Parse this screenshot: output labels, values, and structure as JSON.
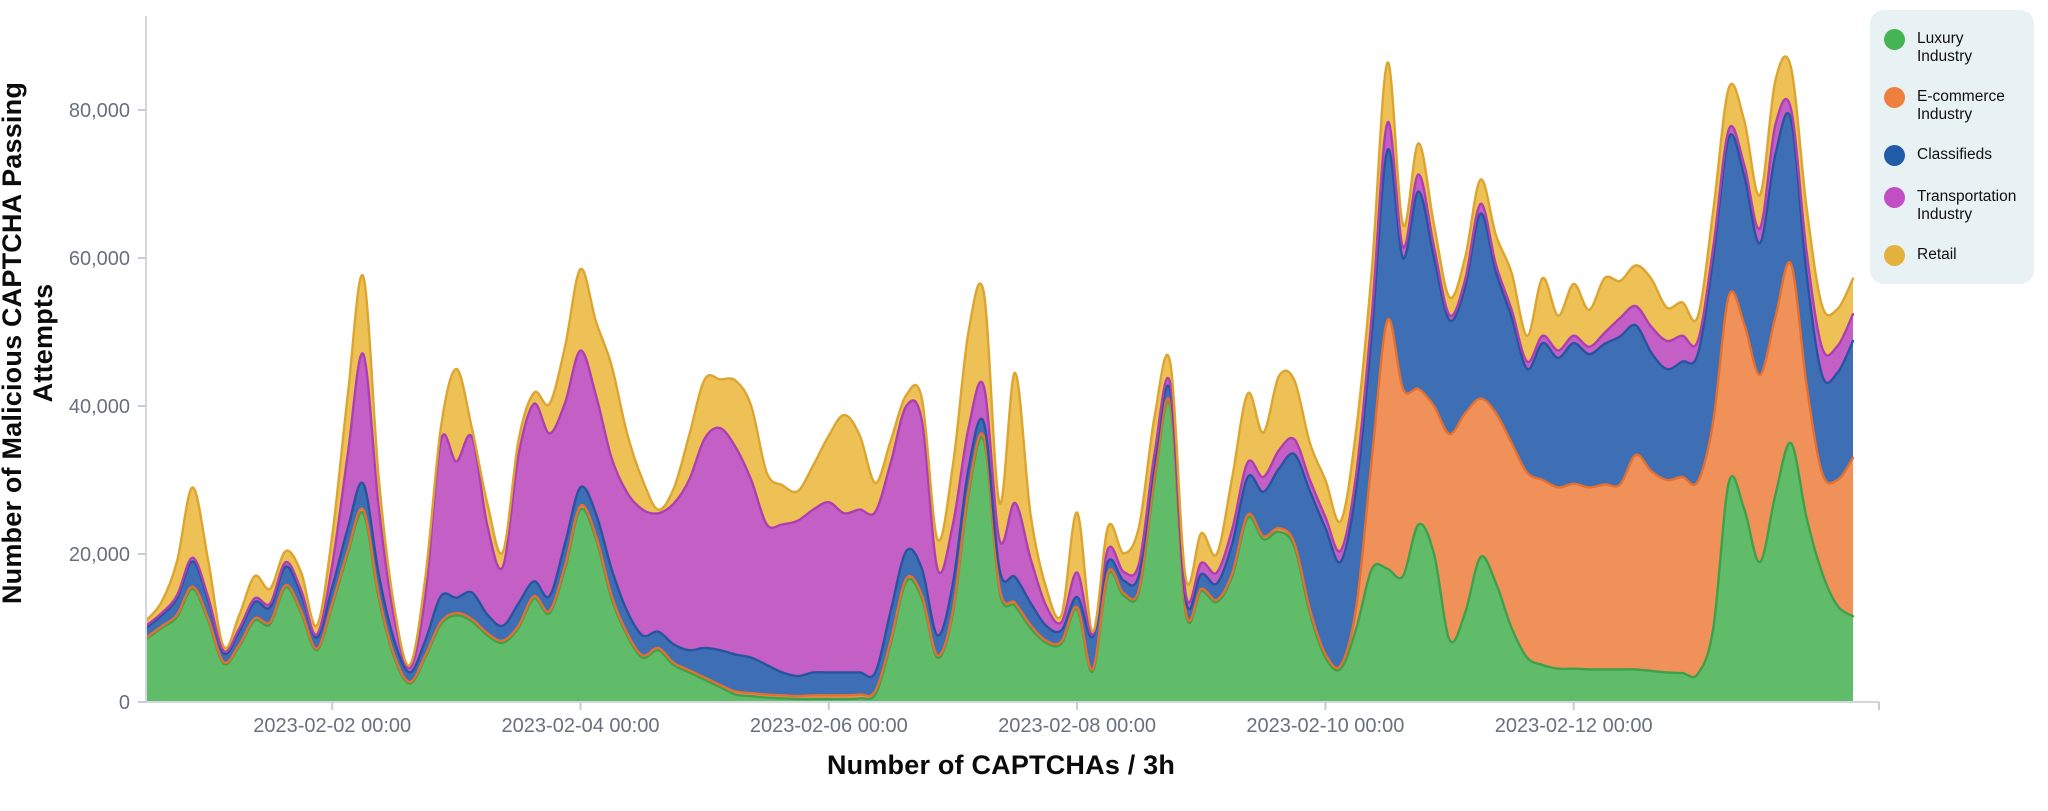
{
  "y_axis": {
    "title": "Number of Malicious CAPTCHA Passing Attempts",
    "tick_labels": [
      "0",
      "20,000",
      "40,000",
      "60,000",
      "80,000"
    ],
    "tick_values": [
      0,
      20000,
      40000,
      60000,
      80000
    ]
  },
  "x_axis": {
    "title": "Number of CAPTCHAs / 3h",
    "tick_labels": [
      "2023-02-02 00:00",
      "2023-02-04 00:00",
      "2023-02-06 00:00",
      "2023-02-08 00:00",
      "2023-02-10 00:00",
      "2023-02-12 00:00"
    ],
    "tick_indices": [
      12,
      28,
      44,
      60,
      76,
      92
    ]
  },
  "legend": {
    "items": [
      {
        "label": "Luxury Industry",
        "color": "#45b554"
      },
      {
        "label": "E-commerce Industry",
        "color": "#ef7f3d"
      },
      {
        "label": "Classifieds",
        "color": "#1f5ba6"
      },
      {
        "label": "Transportation Industry",
        "color": "#c14fc3"
      },
      {
        "label": "Retail",
        "color": "#e3b13d"
      }
    ]
  },
  "chart_data": {
    "type": "area",
    "stacked": true,
    "smooth": true,
    "title": "",
    "xlabel": "Number of CAPTCHAs / 3h",
    "ylabel": "Number of Malicious CAPTCHA Passing Attempts",
    "x_start": "2023-01-31 12:00",
    "x_end": "2023-02-14 06:00",
    "x_step_hours": 3,
    "ylim": [
      0,
      92000
    ],
    "grid": false,
    "legend_position": "top-right",
    "series": [
      {
        "name": "Luxury Industry",
        "fill": "#61bc6a",
        "stroke": "#3da14b",
        "values": [
          8500,
          10000,
          11500,
          15300,
          11000,
          5200,
          7500,
          11000,
          10500,
          15500,
          12000,
          7000,
          13000,
          20000,
          25500,
          14000,
          6000,
          2500,
          6000,
          10500,
          11700,
          10900,
          9000,
          8000,
          10000,
          14000,
          12000,
          18000,
          26000,
          22000,
          14000,
          9000,
          6000,
          7000,
          5000,
          4000,
          3000,
          2000,
          1000,
          800,
          600,
          500,
          400,
          400,
          400,
          400,
          500,
          1000,
          8000,
          16300,
          14000,
          6000,
          12000,
          28000,
          35300,
          15000,
          13000,
          10000,
          8000,
          7900,
          12500,
          4100,
          17200,
          14400,
          15000,
          30000,
          40000,
          12000,
          15000,
          13500,
          17000,
          24900,
          22000,
          23000,
          21000,
          12000,
          6000,
          4500,
          10000,
          18000,
          18000,
          17000,
          24000,
          20000,
          8400,
          12000,
          19600,
          16000,
          10000,
          6000,
          5000,
          4500,
          4500,
          4400,
          4400,
          4400,
          4400,
          4200,
          4000,
          3900,
          3800,
          10000,
          29700,
          26000,
          18900,
          28000,
          35000,
          25000,
          17500,
          13000,
          11600
        ]
      },
      {
        "name": "E-commerce Industry",
        "fill": "#f0915a",
        "stroke": "#e46f2e",
        "values": [
          200,
          200,
          300,
          300,
          300,
          200,
          200,
          300,
          300,
          300,
          300,
          200,
          300,
          400,
          500,
          400,
          300,
          200,
          300,
          300,
          300,
          300,
          300,
          300,
          300,
          300,
          300,
          400,
          500,
          400,
          400,
          300,
          300,
          300,
          300,
          300,
          300,
          300,
          400,
          400,
          400,
          400,
          400,
          500,
          500,
          500,
          500,
          500,
          400,
          400,
          400,
          300,
          400,
          500,
          500,
          400,
          400,
          400,
          300,
          300,
          300,
          300,
          300,
          300,
          300,
          400,
          400,
          300,
          300,
          300,
          400,
          400,
          400,
          500,
          500,
          500,
          500,
          500,
          3000,
          15000,
          33600,
          25300,
          18300,
          20000,
          27800,
          27000,
          21400,
          23000,
          25000,
          25000,
          25000,
          24500,
          25000,
          24600,
          25000,
          25000,
          29000,
          27000,
          26000,
          26500,
          26000,
          28000,
          25200,
          25000,
          25300,
          24000,
          24200,
          18000,
          13500,
          17000,
          21400
        ]
      },
      {
        "name": "Classifieds",
        "fill": "#3e6fb5",
        "stroke": "#27549e",
        "values": [
          1300,
          1500,
          2200,
          3400,
          2500,
          1200,
          1800,
          2200,
          2000,
          2500,
          2200,
          1500,
          2200,
          3000,
          3500,
          2800,
          2000,
          1300,
          2000,
          3500,
          2100,
          3600,
          2500,
          2000,
          3000,
          2000,
          2000,
          3000,
          2500,
          3000,
          3600,
          3000,
          2700,
          2200,
          2500,
          2700,
          4000,
          4700,
          5000,
          4800,
          4000,
          3100,
          2700,
          3100,
          3100,
          3100,
          3000,
          2500,
          4000,
          3700,
          3600,
          2700,
          3600,
          3000,
          1900,
          2500,
          3500,
          3000,
          2000,
          1500,
          1400,
          4400,
          1500,
          1700,
          2000,
          2000,
          1700,
          1500,
          2000,
          2200,
          4000,
          5100,
          6000,
          8000,
          12000,
          16000,
          17000,
          14000,
          16000,
          17000,
          23000,
          17700,
          26700,
          20000,
          15400,
          17000,
          25000,
          19000,
          17000,
          14000,
          18500,
          17500,
          19000,
          18000,
          19000,
          20000,
          17500,
          16000,
          15000,
          15600,
          17200,
          22000,
          21400,
          20000,
          17800,
          22000,
          19600,
          15000,
          13200,
          14500,
          15800
        ]
      },
      {
        "name": "Transportation Industry",
        "fill": "#c45fc6",
        "stroke": "#ae3eb4",
        "values": [
          300,
          300,
          400,
          500,
          400,
          300,
          400,
          500,
          500,
          600,
          600,
          400,
          3000,
          10000,
          17500,
          9000,
          3000,
          600,
          6000,
          21000,
          18400,
          21000,
          12000,
          8000,
          20000,
          24000,
          22000,
          19000,
          18500,
          16000,
          15000,
          16000,
          17000,
          16000,
          19000,
          23000,
          28300,
          30000,
          28000,
          24000,
          19000,
          20000,
          21000,
          22000,
          23000,
          21500,
          22000,
          21700,
          20000,
          19600,
          20000,
          9000,
          8000,
          5500,
          4900,
          4000,
          10000,
          6000,
          2700,
          1100,
          3300,
          300,
          1700,
          1200,
          1500,
          1300,
          1000,
          800,
          1500,
          1500,
          2000,
          2000,
          2000,
          2500,
          2000,
          1500,
          1500,
          1500,
          2000,
          2500,
          3700,
          1500,
          2300,
          1500,
          700,
          1000,
          1300,
          1000,
          1000,
          1000,
          1000,
          1000,
          1000,
          1000,
          1500,
          2500,
          2600,
          3500,
          3800,
          3500,
          1800,
          1500,
          1100,
          1500,
          2000,
          4000,
          1400,
          3000,
          3700,
          3600,
          3600
        ]
      },
      {
        "name": "Retail",
        "fill": "#edc155",
        "stroke": "#dda52f",
        "values": [
          700,
          1500,
          4600,
          9500,
          5000,
          600,
          1800,
          3000,
          2000,
          1500,
          2400,
          1200,
          4000,
          8000,
          10500,
          4000,
          1500,
          400,
          2500,
          1700,
          12500,
          1200,
          3000,
          2000,
          2000,
          1500,
          4000,
          7600,
          11000,
          10000,
          12500,
          8000,
          4000,
          500,
          2000,
          6000,
          8000,
          6600,
          9000,
          10000,
          7000,
          5300,
          4000,
          6000,
          9000,
          13300,
          10000,
          3900,
          3000,
          1500,
          3000,
          4000,
          8000,
          13000,
          12600,
          5000,
          17600,
          6000,
          2500,
          1000,
          8100,
          400,
          3000,
          2500,
          5000,
          5000,
          2800,
          2200,
          4000,
          2500,
          7000,
          9300,
          6000,
          10000,
          8000,
          5000,
          5000,
          4000,
          6000,
          6000,
          8100,
          3000,
          4200,
          3000,
          2400,
          3000,
          3300,
          4000,
          5000,
          3500,
          7800,
          4700,
          7000,
          5000,
          7400,
          5000,
          5500,
          6500,
          4500,
          4500,
          3300,
          5000,
          5600,
          6000,
          4500,
          6000,
          5600,
          6000,
          5700,
          5000,
          4800
        ]
      }
    ]
  }
}
